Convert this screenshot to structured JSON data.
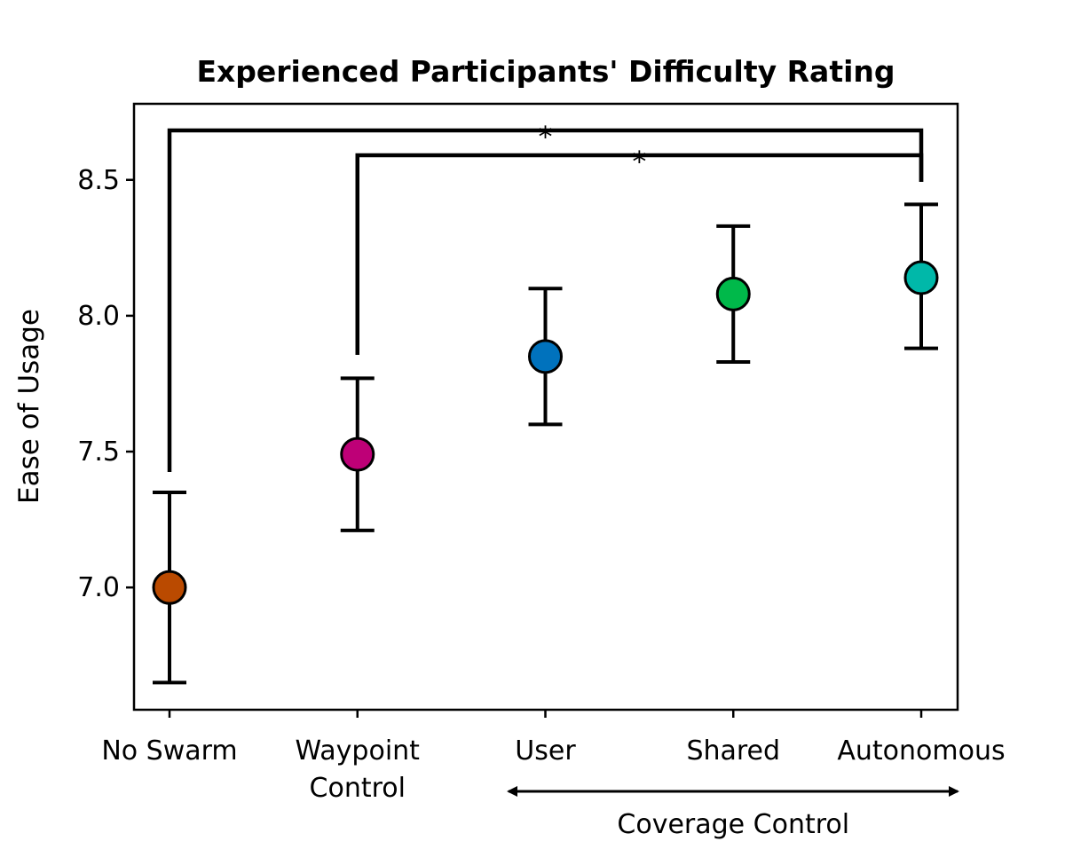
{
  "chart_data": {
    "type": "scatter",
    "title": "Experienced Participants' Difficulty Rating",
    "ylabel": "Ease of Usage",
    "xlabel": "",
    "ylim": [
      6.55,
      8.78
    ],
    "yticks": [
      7.0,
      7.5,
      8.0,
      8.5
    ],
    "ytick_labels": [
      "7.0",
      "7.5",
      "8.0",
      "8.5"
    ],
    "categories": [
      {
        "label_lines": [
          "No Swarm"
        ],
        "value": 7.0,
        "err_low": 6.65,
        "err_high": 7.35,
        "color": "#BA4A00"
      },
      {
        "label_lines": [
          "Waypoint",
          "Control"
        ],
        "value": 7.49,
        "err_low": 7.21,
        "err_high": 7.77,
        "color": "#BE0077"
      },
      {
        "label_lines": [
          "User"
        ],
        "value": 7.85,
        "err_low": 7.6,
        "err_high": 8.1,
        "color": "#0072BD"
      },
      {
        "label_lines": [
          "Shared"
        ],
        "value": 8.08,
        "err_low": 7.83,
        "err_high": 8.33,
        "color": "#00B94A"
      },
      {
        "label_lines": [
          "Autonomous"
        ],
        "value": 8.14,
        "err_low": 7.88,
        "err_high": 8.41,
        "color": "#00B8A9"
      }
    ],
    "significance_brackets": [
      {
        "from": 0,
        "to": 4,
        "label": "*"
      },
      {
        "from": 1,
        "to": 4,
        "label": "*"
      }
    ],
    "group_annotation": {
      "label": "Coverage Control",
      "from": 2,
      "to": 4
    },
    "grid": false,
    "legend": "none"
  }
}
